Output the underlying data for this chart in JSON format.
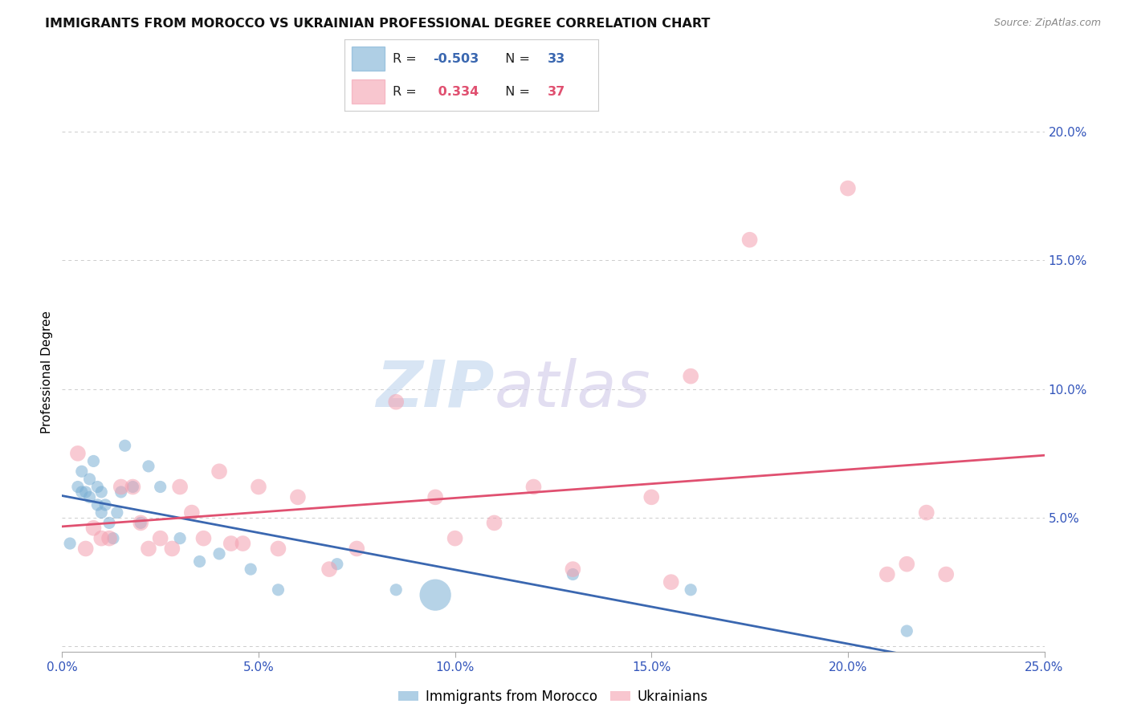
{
  "title": "IMMIGRANTS FROM MOROCCO VS UKRAINIAN PROFESSIONAL DEGREE CORRELATION CHART",
  "source": "Source: ZipAtlas.com",
  "ylabel": "Professional Degree",
  "xlabel": "",
  "xlim": [
    0.0,
    0.25
  ],
  "ylim": [
    -0.002,
    0.215
  ],
  "xticks": [
    0.0,
    0.05,
    0.1,
    0.15,
    0.2,
    0.25
  ],
  "yticks": [
    0.0,
    0.05,
    0.1,
    0.15,
    0.2
  ],
  "xtick_labels": [
    "0.0%",
    "5.0%",
    "10.0%",
    "15.0%",
    "20.0%",
    "25.0%"
  ],
  "ytick_labels": [
    "",
    "5.0%",
    "10.0%",
    "15.0%",
    "20.0%"
  ],
  "morocco_color": "#7bafd4",
  "ukraine_color": "#f4a0b0",
  "morocco_line_color": "#3a67b0",
  "ukraine_line_color": "#e05070",
  "morocco_R": -0.503,
  "morocco_N": 33,
  "ukraine_R": 0.334,
  "ukraine_N": 37,
  "morocco_x": [
    0.002,
    0.004,
    0.005,
    0.005,
    0.006,
    0.007,
    0.007,
    0.008,
    0.009,
    0.009,
    0.01,
    0.01,
    0.011,
    0.012,
    0.013,
    0.014,
    0.015,
    0.016,
    0.018,
    0.02,
    0.022,
    0.025,
    0.03,
    0.035,
    0.04,
    0.048,
    0.055,
    0.07,
    0.085,
    0.095,
    0.13,
    0.16,
    0.215
  ],
  "morocco_y": [
    0.04,
    0.062,
    0.06,
    0.068,
    0.06,
    0.065,
    0.058,
    0.072,
    0.062,
    0.055,
    0.06,
    0.052,
    0.055,
    0.048,
    0.042,
    0.052,
    0.06,
    0.078,
    0.062,
    0.048,
    0.07,
    0.062,
    0.042,
    0.033,
    0.036,
    0.03,
    0.022,
    0.032,
    0.022,
    0.02,
    0.028,
    0.022,
    0.006
  ],
  "morocco_sizes": [
    120,
    120,
    120,
    120,
    120,
    120,
    120,
    120,
    120,
    120,
    120,
    120,
    120,
    120,
    120,
    120,
    120,
    120,
    120,
    120,
    120,
    120,
    120,
    120,
    120,
    120,
    120,
    120,
    120,
    800,
    120,
    120,
    120
  ],
  "ukraine_x": [
    0.004,
    0.006,
    0.008,
    0.01,
    0.012,
    0.015,
    0.018,
    0.02,
    0.022,
    0.025,
    0.028,
    0.03,
    0.033,
    0.036,
    0.04,
    0.043,
    0.046,
    0.05,
    0.055,
    0.06,
    0.068,
    0.075,
    0.085,
    0.095,
    0.1,
    0.11,
    0.12,
    0.13,
    0.15,
    0.155,
    0.16,
    0.175,
    0.2,
    0.21,
    0.215,
    0.22,
    0.225
  ],
  "ukraine_y": [
    0.075,
    0.038,
    0.046,
    0.042,
    0.042,
    0.062,
    0.062,
    0.048,
    0.038,
    0.042,
    0.038,
    0.062,
    0.052,
    0.042,
    0.068,
    0.04,
    0.04,
    0.062,
    0.038,
    0.058,
    0.03,
    0.038,
    0.095,
    0.058,
    0.042,
    0.048,
    0.062,
    0.03,
    0.058,
    0.025,
    0.105,
    0.158,
    0.178,
    0.028,
    0.032,
    0.052,
    0.028
  ],
  "ukraine_sizes": [
    200,
    200,
    200,
    200,
    200,
    200,
    200,
    200,
    200,
    200,
    200,
    200,
    200,
    200,
    200,
    200,
    200,
    200,
    200,
    200,
    200,
    200,
    200,
    200,
    200,
    200,
    200,
    200,
    200,
    200,
    200,
    200,
    200,
    200,
    200,
    200,
    200
  ],
  "watermark_zip": "ZIP",
  "watermark_atlas": "atlas",
  "background_color": "#ffffff",
  "grid_color": "#cccccc"
}
